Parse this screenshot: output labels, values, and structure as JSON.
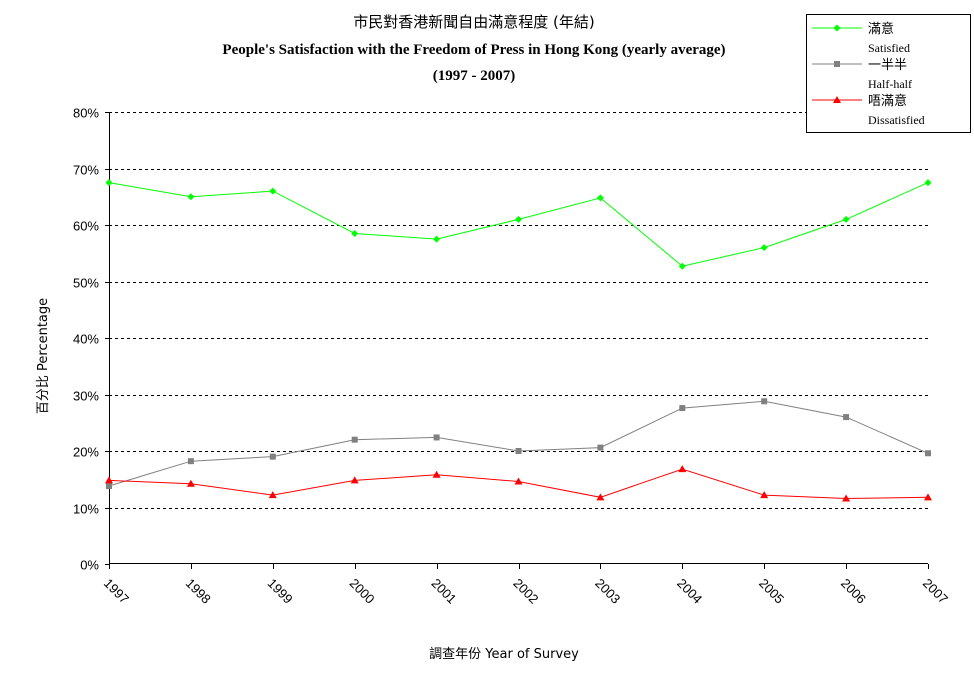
{
  "chart_data": {
    "type": "line",
    "title": {
      "zh": "市民對香港新聞自由滿意程度 (年結)",
      "en": "People's Satisfaction with the Freedom of Press in Hong Kong (yearly average)",
      "period": "(1997 - 2007)"
    },
    "xlabel": "調查年份 Year of Survey",
    "ylabel": "百分比 Percentage",
    "categories": [
      "1997",
      "1998",
      "1999",
      "2000",
      "2001",
      "2002",
      "2003",
      "2004",
      "2005",
      "2006",
      "2007"
    ],
    "y_ticks": [
      "0%",
      "10%",
      "20%",
      "30%",
      "40%",
      "50%",
      "60%",
      "70%",
      "80%"
    ],
    "ylim": [
      0,
      80
    ],
    "grid": "horizontal dashed",
    "legend_position": "top-right",
    "series": [
      {
        "name_zh": "滿意",
        "name_en": "Satisfied",
        "color": "#00ff00",
        "marker": "diamond",
        "values": [
          67.5,
          65,
          66,
          58.5,
          57.5,
          61,
          64.8,
          52.7,
          56,
          61,
          67.5
        ]
      },
      {
        "name_zh": "一半半",
        "name_en": "Half-half",
        "color": "#808080",
        "marker": "square",
        "values": [
          13.8,
          18.2,
          19,
          22,
          22.4,
          20,
          20.6,
          27.6,
          28.8,
          26,
          19.6
        ]
      },
      {
        "name_zh": "唔滿意",
        "name_en": "Dissatisfied",
        "color": "#ff0000",
        "marker": "triangle",
        "values": [
          14.8,
          14.2,
          12.2,
          14.8,
          15.8,
          14.6,
          11.8,
          16.8,
          12.2,
          11.6,
          11.8
        ]
      }
    ]
  }
}
